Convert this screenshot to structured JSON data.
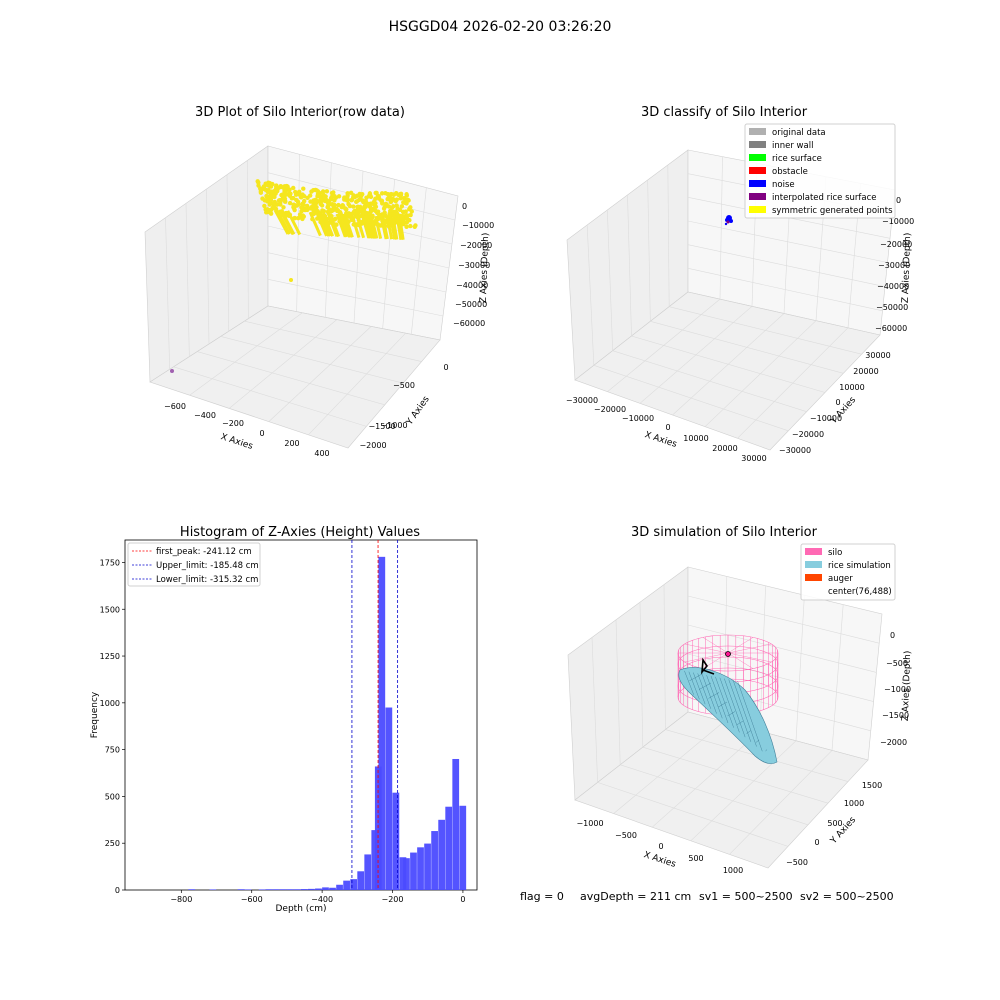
{
  "suptitle": "HSGGD04 2026-02-20 03:26:20",
  "panels": {
    "raw": {
      "title": "3D Plot of Silo Interior(row data)",
      "xlabel": "X Axies",
      "ylabel": "Y Axies",
      "zlabel": "Z Axies (Depth)",
      "xticks": [
        "−600",
        "−400",
        "−200",
        "0",
        "200",
        "400"
      ],
      "yticks": [
        "0",
        "−500",
        "−1000",
        "−1500",
        "−2000"
      ],
      "zticks": [
        "0",
        "−10000",
        "−20000",
        "−30000",
        "−40000",
        "−50000",
        "−60000"
      ],
      "point_color": "#f5e61e",
      "outlier_color": "#a060b0"
    },
    "classify": {
      "title": "3D classify of Silo Interior",
      "xlabel": "X Axies",
      "ylabel": "Y Axies",
      "zlabel": "Z Axies (Depth)",
      "xticks": [
        "−30000",
        "−20000",
        "−10000",
        "0",
        "10000",
        "20000",
        "30000"
      ],
      "yticks": [
        "30000",
        "20000",
        "10000",
        "0",
        "−10000",
        "−20000",
        "−30000"
      ],
      "zticks": [
        "0",
        "−10000",
        "−20000",
        "−30000",
        "−40000",
        "−50000",
        "−60000"
      ],
      "legend": [
        {
          "label": "original data",
          "color": "#b0b0b0"
        },
        {
          "label": "inner wall",
          "color": "#808080"
        },
        {
          "label": "rice surface",
          "color": "#00ff00"
        },
        {
          "label": "obstacle",
          "color": "#ff0000"
        },
        {
          "label": "noise",
          "color": "#0000ff"
        },
        {
          "label": "interpolated rice surface",
          "color": "#800080"
        },
        {
          "label": "symmetric generated points",
          "color": "#ffff00"
        }
      ]
    },
    "simulation": {
      "title": "3D simulation of Silo Interior",
      "xlabel": "X Axies",
      "ylabel": "Y Axies",
      "zlabel": "Z Axies (Depth)",
      "xticks": [
        "−1000",
        "−500",
        "0",
        "500",
        "1000"
      ],
      "yticks": [
        "1500",
        "1000",
        "500",
        "0",
        "−500"
      ],
      "zticks": [
        "0",
        "−500",
        "−1000",
        "−1500",
        "−2000"
      ],
      "legend": [
        {
          "label": "silo",
          "color": "#ff69b4"
        },
        {
          "label": "rice simulation",
          "color": "#87cdde"
        },
        {
          "label": "auger",
          "color": "#ff4500"
        },
        {
          "label": "center(76,488)",
          "color": "#ffffff"
        }
      ]
    }
  },
  "chart_data": [
    {
      "type": "bar",
      "title": "Histogram of Z-Axies (Height) Values",
      "xlabel": "Depth (cm)",
      "ylabel": "Frequency",
      "xlim": [
        -960,
        40
      ],
      "ylim": [
        0,
        1870
      ],
      "bin_width": 20,
      "bar_color": "#4b4bff",
      "xticks": [
        -800,
        -600,
        -400,
        -200,
        0
      ],
      "xtick_labels": [
        "−800",
        "−600",
        "−400",
        "−200",
        "0"
      ],
      "yticks": [
        0,
        250,
        500,
        750,
        1000,
        1250,
        1500,
        1750
      ],
      "bins": [
        {
          "x": -780,
          "v": 4
        },
        {
          "x": -720,
          "v": 3
        },
        {
          "x": -640,
          "v": 4
        },
        {
          "x": -620,
          "v": 3
        },
        {
          "x": -580,
          "v": 3
        },
        {
          "x": -560,
          "v": 4
        },
        {
          "x": -540,
          "v": 4
        },
        {
          "x": -520,
          "v": 4
        },
        {
          "x": -500,
          "v": 4
        },
        {
          "x": -480,
          "v": 4
        },
        {
          "x": -460,
          "v": 5
        },
        {
          "x": -440,
          "v": 6
        },
        {
          "x": -420,
          "v": 8
        },
        {
          "x": -400,
          "v": 14
        },
        {
          "x": -380,
          "v": 12
        },
        {
          "x": -360,
          "v": 28
        },
        {
          "x": -340,
          "v": 50
        },
        {
          "x": -320,
          "v": 58
        },
        {
          "x": -300,
          "v": 100
        },
        {
          "x": -280,
          "v": 190
        },
        {
          "x": -260,
          "v": 320
        },
        {
          "x": -250,
          "v": 660
        },
        {
          "x": -240,
          "v": 1780
        },
        {
          "x": -220,
          "v": 975
        },
        {
          "x": -200,
          "v": 520
        },
        {
          "x": -180,
          "v": 175
        },
        {
          "x": -170,
          "v": 170
        },
        {
          "x": -150,
          "v": 200
        },
        {
          "x": -130,
          "v": 228
        },
        {
          "x": -110,
          "v": 248
        },
        {
          "x": -90,
          "v": 315
        },
        {
          "x": -70,
          "v": 375
        },
        {
          "x": -50,
          "v": 445
        },
        {
          "x": -30,
          "v": 700
        },
        {
          "x": -10,
          "v": 450
        }
      ],
      "vlines": [
        {
          "label": "first_peak: -241.12 cm",
          "x": -241.12,
          "color": "#ff0000"
        },
        {
          "label": "Upper_limit: -185.48 cm",
          "x": -185.48,
          "color": "#0000cc"
        },
        {
          "label": "Lower_limit: -315.32 cm",
          "x": -315.32,
          "color": "#0000cc"
        }
      ]
    }
  ],
  "footer": {
    "flag": "flag = 0",
    "avg": "avgDepth = 211 cm",
    "sv1": "sv1 = 500~2500",
    "sv2": "sv2 = 500~2500"
  }
}
